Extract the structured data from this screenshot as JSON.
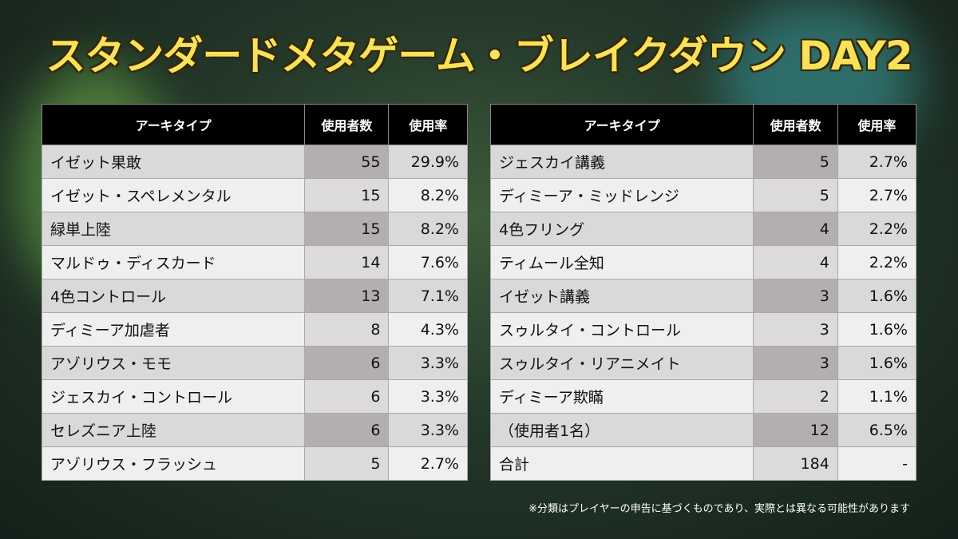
{
  "title": "スタンダードメタゲーム・ブレイクダウン DAY2",
  "tables": [
    {
      "header": [
        "アーキタイプ",
        "使用者数",
        "使用率"
      ],
      "rows": [
        [
          "イゼット果敢",
          "55",
          "29.9%"
        ],
        [
          "イゼット・スペレメンタル",
          "15",
          "8.2%"
        ],
        [
          "緑単上陸",
          "15",
          "8.2%"
        ],
        [
          "マルドゥ・ディスカード",
          "14",
          "7.6%"
        ],
        [
          "4色コントロール",
          "13",
          "7.1%"
        ],
        [
          "ディミーア加虐者",
          "8",
          "4.3%"
        ],
        [
          "アゾリウス・モモ",
          "6",
          "3.3%"
        ],
        [
          "ジェスカイ・コントロール",
          "6",
          "3.3%"
        ],
        [
          "セレズニア上陸",
          "6",
          "3.3%"
        ],
        [
          "アゾリウス・フラッシュ",
          "5",
          "2.7%"
        ]
      ]
    },
    {
      "header": [
        "アーキタイプ",
        "使用者数",
        "使用率"
      ],
      "rows": [
        [
          "ジェスカイ講義",
          "5",
          "2.7%"
        ],
        [
          "ディミーア・ミッドレンジ",
          "5",
          "2.7%"
        ],
        [
          "4色フリング",
          "4",
          "2.2%"
        ],
        [
          "ティムール全知",
          "4",
          "2.2%"
        ],
        [
          "イゼット講義",
          "3",
          "1.6%"
        ],
        [
          "スゥルタイ・コントロール",
          "3",
          "1.6%"
        ],
        [
          "スゥルタイ・リアニメイト",
          "3",
          "1.6%"
        ],
        [
          "ディミーア欺瞞",
          "2",
          "1.1%"
        ],
        [
          "（使用者1名）",
          "12",
          "6.5%"
        ],
        [
          "合計",
          "184",
          "-"
        ]
      ]
    }
  ],
  "footnote": "※分類はプレイヤーの申告に基づくものであり、実際とは異なる可能性があります"
}
